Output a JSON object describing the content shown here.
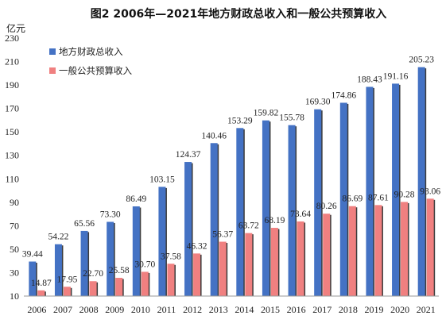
{
  "chart_data": {
    "type": "bar",
    "title": "图2    2006年—2021年地方财政总收入和一般公共预算收入",
    "ylabel": "亿元",
    "ylim": [
      10,
      230
    ],
    "yticks": [
      10,
      30,
      50,
      70,
      90,
      110,
      130,
      150,
      170,
      190,
      210,
      230
    ],
    "categories": [
      "2006",
      "2007",
      "2008",
      "2009",
      "2010",
      "2011",
      "2012",
      "2013",
      "2014",
      "2015",
      "2016",
      "2017",
      "2018",
      "2019",
      "2020",
      "2021"
    ],
    "legend_position": "top-left",
    "grid": false,
    "series": [
      {
        "name": "地方财政总收入",
        "color": "#4472C4",
        "values": [
          39.44,
          54.22,
          65.56,
          73.3,
          86.49,
          103.15,
          124.37,
          140.46,
          153.29,
          159.82,
          155.78,
          169.3,
          174.86,
          188.43,
          191.16,
          205.23
        ],
        "labels": [
          "39.44",
          "54.22",
          "65.56",
          "73.30",
          "86.49",
          "103.15",
          "124.37",
          "140.46",
          "153.29",
          "159.82",
          "155.78",
          "169.30",
          "174.86",
          "188.43",
          "191.16",
          "205.23"
        ]
      },
      {
        "name": "一般公共预算收入",
        "color": "#F08080",
        "values": [
          14.87,
          17.95,
          22.7,
          25.58,
          30.7,
          37.58,
          46.32,
          56.37,
          63.72,
          68.19,
          73.64,
          80.26,
          86.69,
          87.61,
          90.28,
          93.06
        ],
        "labels": [
          "14.87",
          "17.95",
          "22.70",
          "25.58",
          "30.70",
          "37.58",
          "46.32",
          "56.37",
          "63.72",
          "68.19",
          "73.64",
          "80.26",
          "86.69",
          "87.61",
          "90.28",
          "93.06"
        ]
      }
    ]
  }
}
